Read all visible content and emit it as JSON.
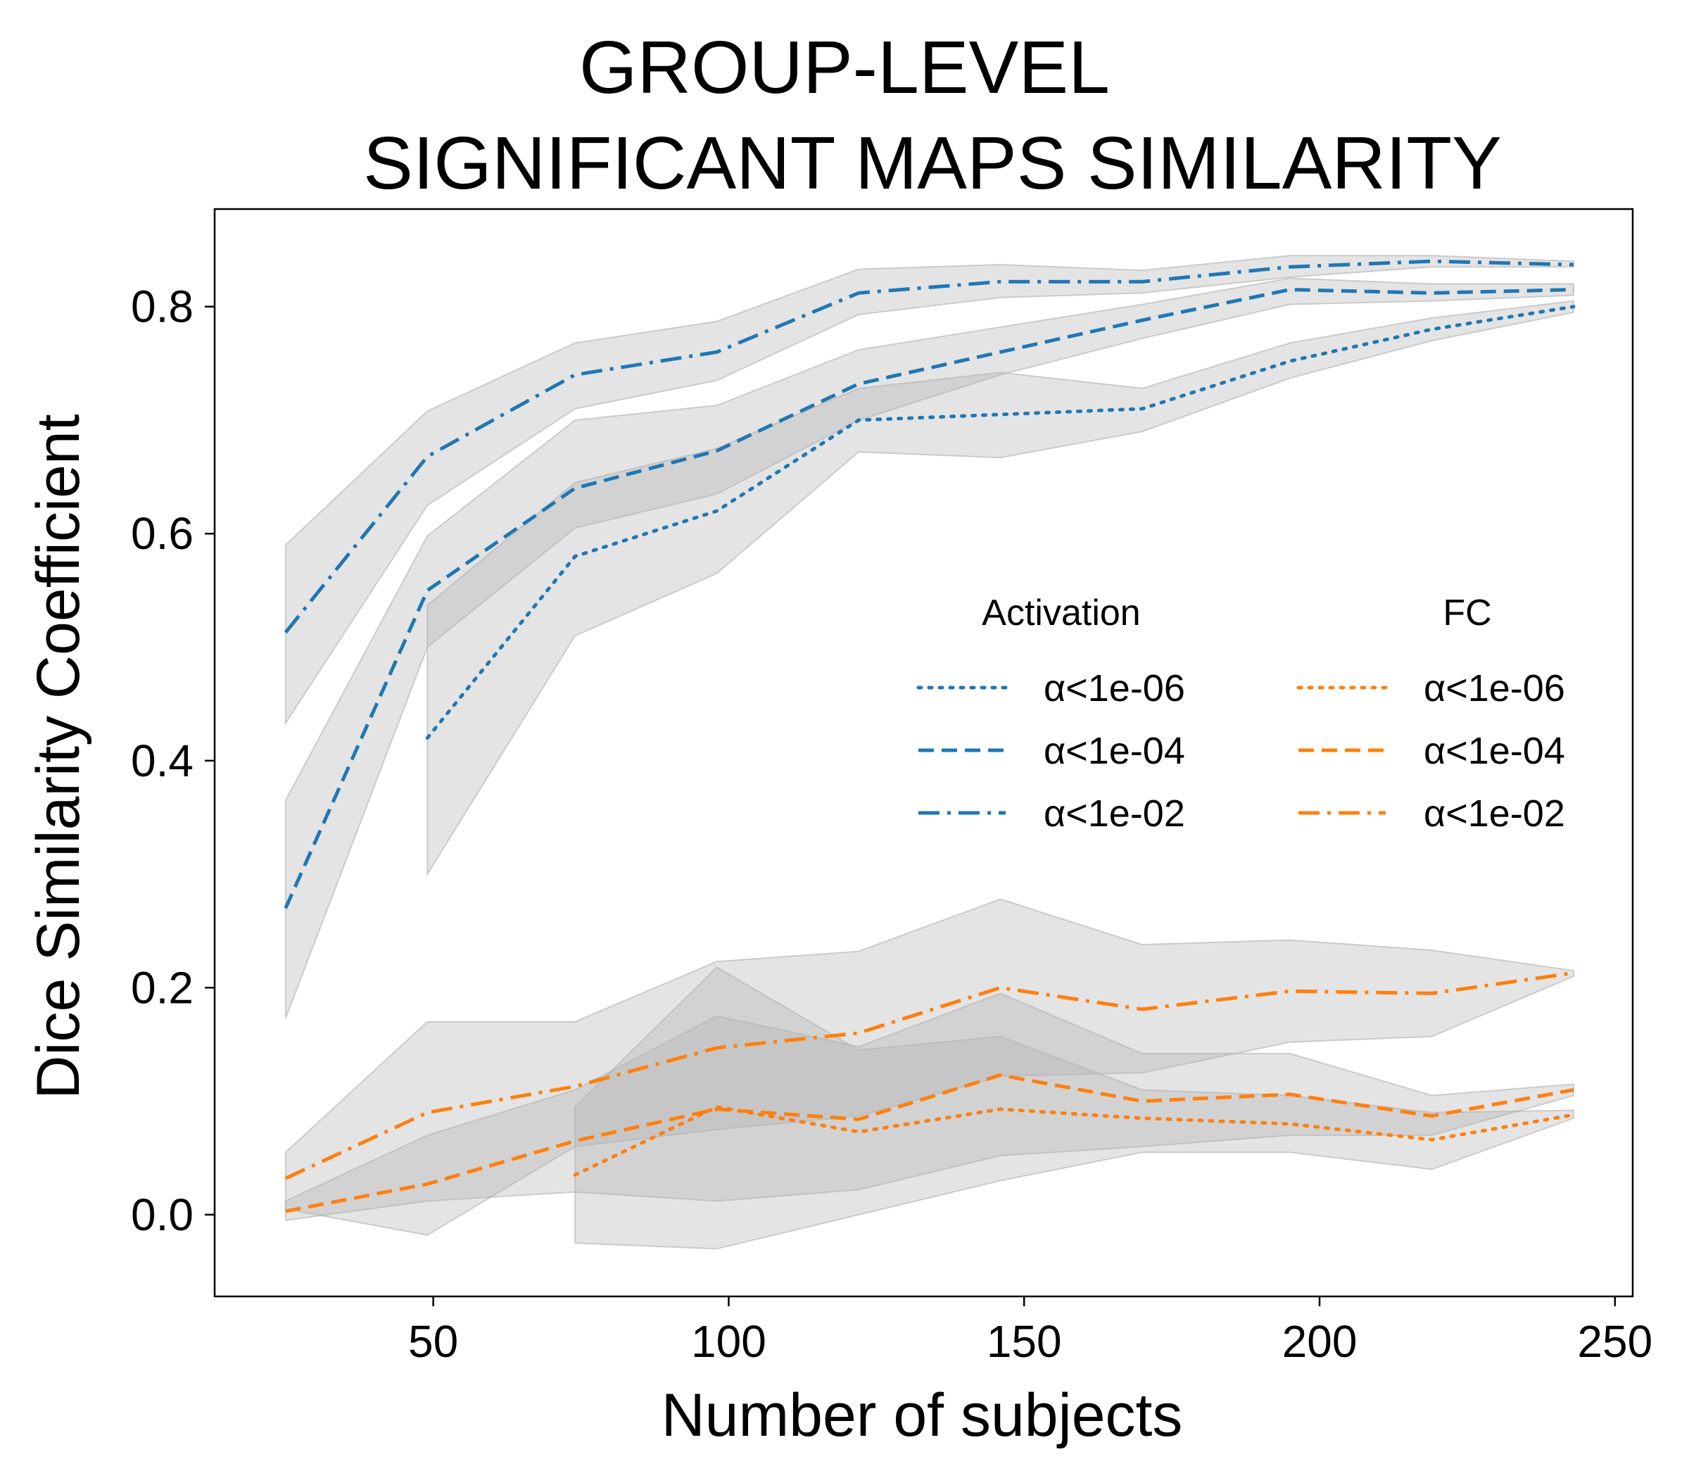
{
  "chart_data": {
    "type": "line",
    "title_lines": [
      "GROUP-LEVEL",
      "SIGNIFICANT MAPS SIMILARITY"
    ],
    "xlabel": "Number of subjects",
    "ylabel": "Dice Similarity Coefficient",
    "xlim": [
      13,
      253
    ],
    "ylim": [
      -0.072,
      0.886
    ],
    "xticks": [
      50,
      100,
      150,
      200,
      250
    ],
    "xtick_labels": [
      "50",
      "100",
      "150",
      "200",
      "250"
    ],
    "yticks": [
      0.0,
      0.2,
      0.4,
      0.6,
      0.8
    ],
    "ytick_labels": [
      "0.0",
      "0.2",
      "0.4",
      "0.6",
      "0.8"
    ],
    "grid": false,
    "legend_placement": "center-right",
    "legend_groups": [
      {
        "title": "Activation",
        "color": "#1f77b4"
      },
      {
        "title": "FC",
        "color": "#ff7f0e"
      }
    ],
    "band_color": "#b3b3b3",
    "series": [
      {
        "group": "Activation",
        "name": "α<1e-06",
        "color": "#1f77b4",
        "style": "dotted",
        "x": [
          49,
          74,
          98,
          122,
          146,
          170,
          195,
          219,
          243
        ],
        "y": [
          0.42,
          0.58,
          0.62,
          0.7,
          0.705,
          0.71,
          0.752,
          0.78,
          0.8
        ],
        "lower": [
          0.3,
          0.51,
          0.565,
          0.672,
          0.667,
          0.69,
          0.737,
          0.77,
          0.795
        ],
        "upper": [
          0.537,
          0.645,
          0.675,
          0.728,
          0.742,
          0.728,
          0.768,
          0.79,
          0.805
        ]
      },
      {
        "group": "Activation",
        "name": "α<1e-04",
        "color": "#1f77b4",
        "style": "dashed",
        "x": [
          25,
          49,
          74,
          98,
          122,
          146,
          170,
          195,
          219,
          243
        ],
        "y": [
          0.27,
          0.55,
          0.64,
          0.673,
          0.732,
          0.76,
          0.788,
          0.815,
          0.812,
          0.815
        ],
        "lower": [
          0.173,
          0.5,
          0.605,
          0.635,
          0.7,
          0.74,
          0.772,
          0.802,
          0.805,
          0.81
        ],
        "upper": [
          0.365,
          0.598,
          0.7,
          0.713,
          0.762,
          0.782,
          0.802,
          0.825,
          0.82,
          0.82
        ]
      },
      {
        "group": "Activation",
        "name": "α<1e-02",
        "color": "#1f77b4",
        "style": "dashdot",
        "x": [
          25,
          49,
          74,
          98,
          122,
          146,
          170,
          195,
          219,
          243
        ],
        "y": [
          0.513,
          0.668,
          0.74,
          0.76,
          0.812,
          0.822,
          0.822,
          0.835,
          0.84,
          0.837
        ],
        "lower": [
          0.433,
          0.625,
          0.71,
          0.735,
          0.793,
          0.808,
          0.812,
          0.826,
          0.835,
          0.835
        ],
        "upper": [
          0.59,
          0.708,
          0.768,
          0.787,
          0.833,
          0.837,
          0.832,
          0.845,
          0.845,
          0.84
        ]
      },
      {
        "group": "FC",
        "name": "α<1e-06",
        "color": "#ff7f0e",
        "style": "dotted",
        "x": [
          74,
          98,
          122,
          146,
          170,
          195,
          219,
          243
        ],
        "y": [
          0.035,
          0.095,
          0.073,
          0.093,
          0.085,
          0.08,
          0.066,
          0.088
        ],
        "lower": [
          -0.025,
          -0.03,
          0.0,
          0.03,
          0.055,
          0.055,
          0.04,
          0.085
        ],
        "upper": [
          0.095,
          0.218,
          0.145,
          0.157,
          0.11,
          0.105,
          0.09,
          0.092
        ]
      },
      {
        "group": "FC",
        "name": "α<1e-04",
        "color": "#ff7f0e",
        "style": "dashed",
        "x": [
          25,
          49,
          74,
          98,
          122,
          146,
          170,
          195,
          219,
          243
        ],
        "y": [
          0.003,
          0.027,
          0.065,
          0.093,
          0.084,
          0.123,
          0.1,
          0.106,
          0.087,
          0.11
        ],
        "lower": [
          -0.005,
          0.012,
          0.02,
          0.012,
          0.022,
          0.052,
          0.06,
          0.07,
          0.07,
          0.105
        ],
        "upper": [
          0.012,
          0.07,
          0.11,
          0.175,
          0.148,
          0.195,
          0.142,
          0.142,
          0.105,
          0.115
        ]
      },
      {
        "group": "FC",
        "name": "α<1e-02",
        "color": "#ff7f0e",
        "style": "dashdot",
        "x": [
          25,
          49,
          74,
          98,
          122,
          146,
          170,
          195,
          219,
          243
        ],
        "y": [
          0.032,
          0.09,
          0.113,
          0.147,
          0.16,
          0.2,
          0.181,
          0.197,
          0.195,
          0.213
        ],
        "lower": [
          0.005,
          -0.018,
          0.06,
          0.075,
          0.087,
          0.122,
          0.125,
          0.152,
          0.157,
          0.21
        ],
        "upper": [
          0.055,
          0.17,
          0.17,
          0.223,
          0.232,
          0.278,
          0.238,
          0.242,
          0.233,
          0.215
        ]
      }
    ]
  }
}
